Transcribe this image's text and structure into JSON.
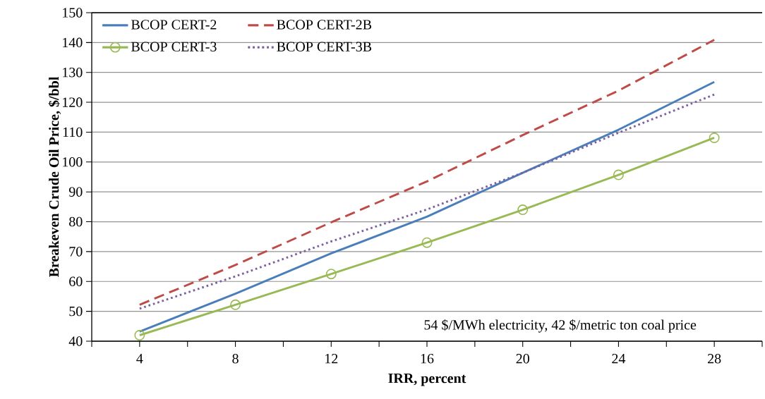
{
  "chart_data": {
    "type": "line",
    "xlabel": "IRR, percent",
    "ylabel": "Breakeven Crude Oil Price, $/bbl",
    "x": [
      4,
      8,
      12,
      16,
      20,
      24,
      28
    ],
    "series": [
      {
        "name": "BCOP CERT-2",
        "color": "#4a7ebb",
        "line_style": "solid",
        "marker": "none",
        "values": [
          43.2,
          55.9,
          69.4,
          81.7,
          96.4,
          110.8,
          126.8
        ]
      },
      {
        "name": "BCOP CERT-2B",
        "color": "#be4b48",
        "line_style": "dashed",
        "marker": "none",
        "values": [
          52.2,
          65.5,
          79.8,
          93.5,
          109,
          123.9,
          140.9
        ]
      },
      {
        "name": "BCOP CERT-3",
        "color": "#98b954",
        "line_style": "solid",
        "marker": "circle",
        "values": [
          42,
          52.2,
          62.5,
          73,
          84,
          95.7,
          108.1
        ]
      },
      {
        "name": "BCOP CERT-3B",
        "color": "#7d60a0",
        "line_style": "dotted",
        "marker": "none",
        "values": [
          50.9,
          61.7,
          73.4,
          84.1,
          96.4,
          109.8,
          122.6
        ]
      }
    ],
    "xlim": [
      2,
      30
    ],
    "xticks": [
      {
        "value": 2,
        "label": null
      },
      4,
      {
        "value": 6,
        "label": null
      },
      8,
      {
        "value": 10,
        "label": null
      },
      12,
      {
        "value": 14,
        "label": null
      },
      16,
      {
        "value": 18,
        "label": null
      },
      20,
      {
        "value": 22,
        "label": null
      },
      24,
      {
        "value": 26,
        "label": null
      },
      28,
      {
        "value": 30,
        "label": null
      }
    ],
    "ylim": [
      40,
      150
    ],
    "yticks": [
      40,
      50,
      60,
      70,
      80,
      90,
      100,
      110,
      120,
      130,
      140,
      150
    ],
    "grid": "y",
    "legend": "top",
    "annotations": [
      "54 $/MWh electricity, 42 $/metric ton coal price"
    ]
  }
}
